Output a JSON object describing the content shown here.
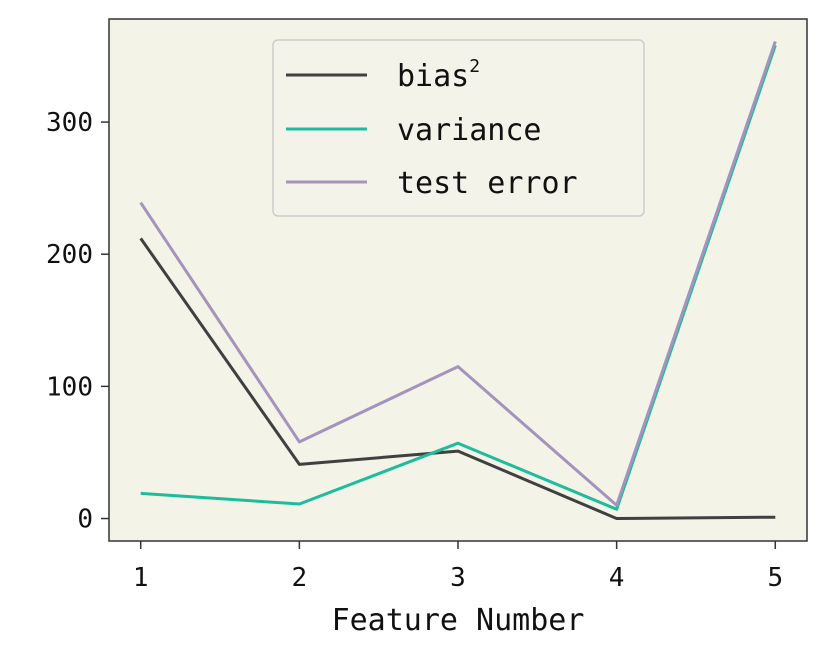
{
  "chart_data": {
    "type": "line",
    "x": [
      1,
      2,
      3,
      4,
      5
    ],
    "series": [
      {
        "name": "bias",
        "name_superscript": "2",
        "color": "#404040",
        "values": [
          212,
          41,
          51,
          0,
          1
        ]
      },
      {
        "name": "variance",
        "color": "#1ebc9c",
        "values": [
          19,
          11,
          57,
          7,
          358
        ]
      },
      {
        "name": "test error",
        "color": "#a493bd",
        "values": [
          239,
          58,
          115,
          10,
          361
        ]
      }
    ],
    "xlabel": "Feature Number",
    "ylabel": "",
    "title": "",
    "xlim": [
      0.8,
      5.2
    ],
    "ylim": [
      -17,
      378
    ],
    "xticks": [
      1,
      2,
      3,
      4,
      5
    ],
    "yticks": [
      0,
      100,
      200,
      300
    ],
    "grid": false,
    "legend_position": "top-center",
    "background_color": "#f3f3e8",
    "frame_color": "#333333"
  }
}
